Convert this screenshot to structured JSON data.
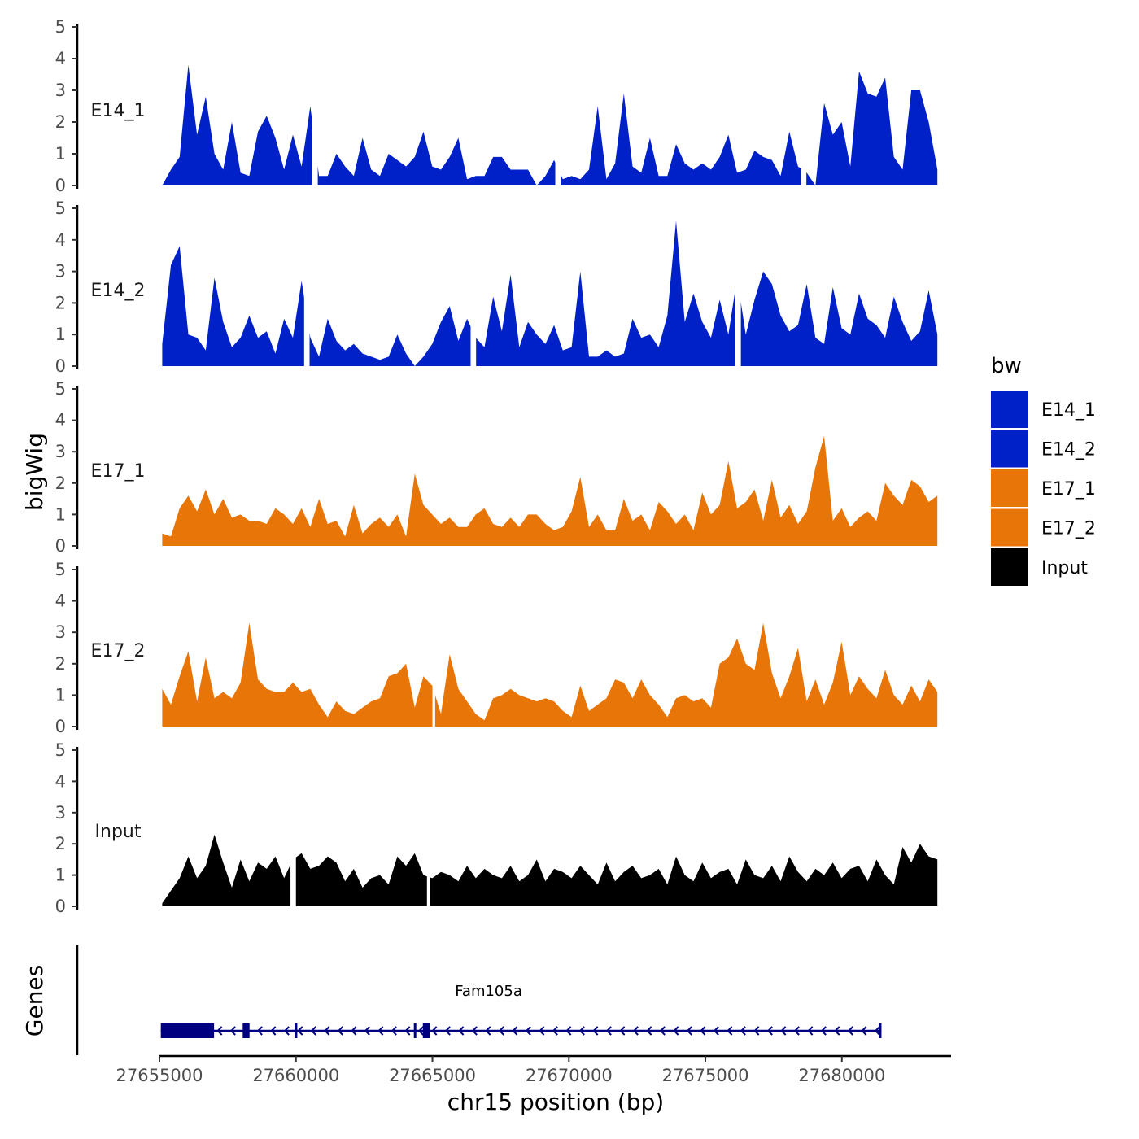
{
  "chart_data": {
    "type": "area",
    "title": "",
    "ylabel": "bigWig",
    "xlabel": "chr15 position (bp)",
    "chromosome": "chr15",
    "xlim": [
      27655000,
      27684000
    ],
    "data_range": [
      27655100,
      27683500
    ],
    "ylim": [
      0,
      5
    ],
    "yticks": [
      0,
      1,
      2,
      3,
      4,
      5
    ],
    "xticks": [
      27655000,
      27660000,
      27665000,
      27670000,
      27675000,
      27680000
    ],
    "xtick_labels": [
      "27655000",
      "27660000",
      "27665000",
      "27670000",
      "27675000",
      "27680000"
    ],
    "legend": {
      "title": "bw",
      "placement": "right",
      "entries": [
        {
          "label": "E14_1",
          "color": "#0020C8"
        },
        {
          "label": "E14_2",
          "color": "#0020C8"
        },
        {
          "label": "E17_1",
          "color": "#E87508"
        },
        {
          "label": "E17_2",
          "color": "#E87508"
        },
        {
          "label": "Input",
          "color": "#000000"
        }
      ]
    },
    "series": [
      {
        "name": "E14_1",
        "color": "#0020C8",
        "values": [
          0,
          0.5,
          0.9,
          3.8,
          1.6,
          2.8,
          1.0,
          0.5,
          2.0,
          0.4,
          0.3,
          1.7,
          2.2,
          1.5,
          0.5,
          1.6,
          0.6,
          2.5,
          0.3,
          0.3,
          1.0,
          0.6,
          0.3,
          1.5,
          0.5,
          0.3,
          1.0,
          0.8,
          0.6,
          0.9,
          1.7,
          0.6,
          0.5,
          0.9,
          1.5,
          0.2,
          0.3,
          0.3,
          0.9,
          0.9,
          0.5,
          0.5,
          0.5,
          0,
          0.3,
          0.8,
          0.2,
          0.3,
          0.2,
          0.5,
          2.5,
          0.2,
          0.7,
          2.9,
          0.6,
          0.4,
          1.5,
          0.3,
          0.3,
          1.3,
          0.7,
          0.5,
          0.7,
          0.5,
          0.9,
          1.6,
          0.4,
          0.5,
          1.1,
          0.9,
          0.8,
          0.3,
          1.7,
          0.6,
          0.4,
          0,
          2.6,
          1.6,
          2.0,
          0.6,
          3.6,
          2.9,
          2.8,
          3.4,
          0.9,
          0.5,
          3.0,
          3.0,
          2.0,
          0.5
        ],
        "gaps": [
          [
            27660600,
            27660800
          ],
          [
            27669500,
            27669700
          ],
          [
            27678500,
            27678700
          ]
        ]
      },
      {
        "name": "E14_2",
        "color": "#0020C8",
        "values": [
          0.7,
          3.2,
          3.8,
          1.0,
          0.9,
          0.5,
          2.8,
          1.4,
          0.6,
          0.9,
          1.6,
          0.9,
          1.1,
          0.4,
          1.5,
          0.9,
          2.7,
          0.9,
          0.3,
          1.5,
          0.8,
          0.5,
          0.7,
          0.4,
          0.3,
          0.2,
          0.3,
          1.0,
          0.4,
          0,
          0.3,
          0.7,
          1.4,
          1.9,
          0.8,
          1.5,
          0.9,
          0.6,
          2.2,
          1.1,
          2.9,
          0.6,
          1.4,
          1.0,
          0.7,
          1.3,
          0.5,
          0.6,
          3.0,
          0.3,
          0.3,
          0.5,
          0.3,
          0.4,
          1.5,
          0.9,
          1.0,
          0.6,
          1.6,
          4.6,
          1.4,
          2.3,
          1.4,
          0.9,
          2.1,
          1.0,
          2.8,
          1.0,
          2.1,
          3.0,
          2.6,
          1.6,
          1.1,
          1.3,
          2.6,
          0.9,
          0.7,
          2.5,
          1.2,
          1.0,
          2.3,
          1.5,
          1.3,
          0.9,
          2.2,
          1.4,
          0.8,
          1.1,
          2.4,
          1.0
        ],
        "gaps": [
          [
            27660300,
            27660500
          ],
          [
            27666400,
            27666600
          ],
          [
            27676100,
            27676300
          ]
        ]
      },
      {
        "name": "E17_1",
        "color": "#E87508",
        "values": [
          0.4,
          0.3,
          1.2,
          1.6,
          1.1,
          1.8,
          1.0,
          1.5,
          0.9,
          1.0,
          0.8,
          0.8,
          0.7,
          1.2,
          1.0,
          0.7,
          1.2,
          0.6,
          1.5,
          0.7,
          0.8,
          0.3,
          1.3,
          0.4,
          0.7,
          0.9,
          0.6,
          1.0,
          0.3,
          2.3,
          1.3,
          1.0,
          0.7,
          0.9,
          0.6,
          0.6,
          1.0,
          1.2,
          0.7,
          0.6,
          0.9,
          0.6,
          1.0,
          1.0,
          0.7,
          0.5,
          0.6,
          1.1,
          2.2,
          0.6,
          1.0,
          0.5,
          0.5,
          1.5,
          0.8,
          1.0,
          0.5,
          1.4,
          1.1,
          0.7,
          1.0,
          0.5,
          1.7,
          1.0,
          1.3,
          2.7,
          1.2,
          1.4,
          1.8,
          0.8,
          2.1,
          0.9,
          1.3,
          0.7,
          1.1,
          2.5,
          3.5,
          0.8,
          1.2,
          0.6,
          0.9,
          1.1,
          0.8,
          2.0,
          1.6,
          1.3,
          2.1,
          1.9,
          1.4,
          1.6
        ],
        "gaps": []
      },
      {
        "name": "E17_2",
        "color": "#E87508",
        "values": [
          1.2,
          0.7,
          1.6,
          2.4,
          0.8,
          2.2,
          0.9,
          1.1,
          0.9,
          1.4,
          3.3,
          1.5,
          1.2,
          1.1,
          1.1,
          1.4,
          1.1,
          1.2,
          0.7,
          0.3,
          0.8,
          0.5,
          0.4,
          0.6,
          0.8,
          0.9,
          1.6,
          1.7,
          2.0,
          0.6,
          1.6,
          1.3,
          0.4,
          2.3,
          1.2,
          0.8,
          0.4,
          0.2,
          0.9,
          1.0,
          1.2,
          1.0,
          0.9,
          0.8,
          0.9,
          0.8,
          0.5,
          0.3,
          1.3,
          0.5,
          0.7,
          0.9,
          1.5,
          1.4,
          0.9,
          1.5,
          1.0,
          0.7,
          0.3,
          0.9,
          1.0,
          0.8,
          0.9,
          0.6,
          2.0,
          2.2,
          2.8,
          2.0,
          1.8,
          3.3,
          1.7,
          0.9,
          1.6,
          2.5,
          0.8,
          1.5,
          0.7,
          1.4,
          2.7,
          1.0,
          1.6,
          1.2,
          0.9,
          1.8,
          1.0,
          0.7,
          1.3,
          0.8,
          1.5,
          1.1
        ],
        "gaps": [
          [
            27665000,
            27665100
          ]
        ]
      },
      {
        "name": "Input",
        "color": "#000000",
        "values": [
          0.1,
          0.5,
          0.9,
          1.6,
          0.9,
          1.3,
          2.3,
          1.4,
          0.6,
          1.5,
          0.8,
          1.4,
          1.2,
          1.6,
          0.9,
          1.5,
          1.7,
          1.2,
          1.3,
          1.6,
          1.4,
          0.8,
          1.2,
          0.6,
          0.9,
          1.0,
          0.7,
          1.6,
          1.3,
          1.7,
          1.0,
          0.9,
          1.1,
          1.0,
          0.8,
          1.3,
          0.9,
          1.2,
          1.0,
          0.9,
          1.3,
          0.8,
          1.0,
          1.5,
          0.8,
          1.2,
          1.1,
          0.9,
          1.3,
          1.0,
          0.7,
          1.4,
          0.8,
          1.1,
          1.3,
          0.9,
          1.0,
          1.2,
          0.7,
          1.6,
          1.0,
          0.8,
          1.4,
          0.9,
          1.1,
          1.2,
          0.7,
          1.5,
          1.0,
          0.9,
          1.3,
          0.8,
          1.6,
          1.1,
          0.8,
          1.2,
          1.0,
          1.4,
          0.9,
          1.2,
          1.3,
          0.8,
          1.5,
          1.0,
          0.7,
          1.9,
          1.4,
          2.0,
          1.6,
          1.5
        ],
        "gaps": [
          [
            27659800,
            27660000
          ],
          [
            27664800,
            27664900
          ]
        ]
      }
    ],
    "genes": [
      {
        "name": "Fam105a",
        "start": 27655050,
        "end": 27681450,
        "strand": "-",
        "exons": [
          [
            27655050,
            27657000
          ],
          [
            27658050,
            27658300
          ],
          [
            27659950,
            27660050
          ],
          [
            27664320,
            27664400
          ],
          [
            27664650,
            27664900
          ],
          [
            27681350,
            27681450
          ]
        ]
      }
    ]
  },
  "labels": {
    "genes_axis": "Genes"
  }
}
